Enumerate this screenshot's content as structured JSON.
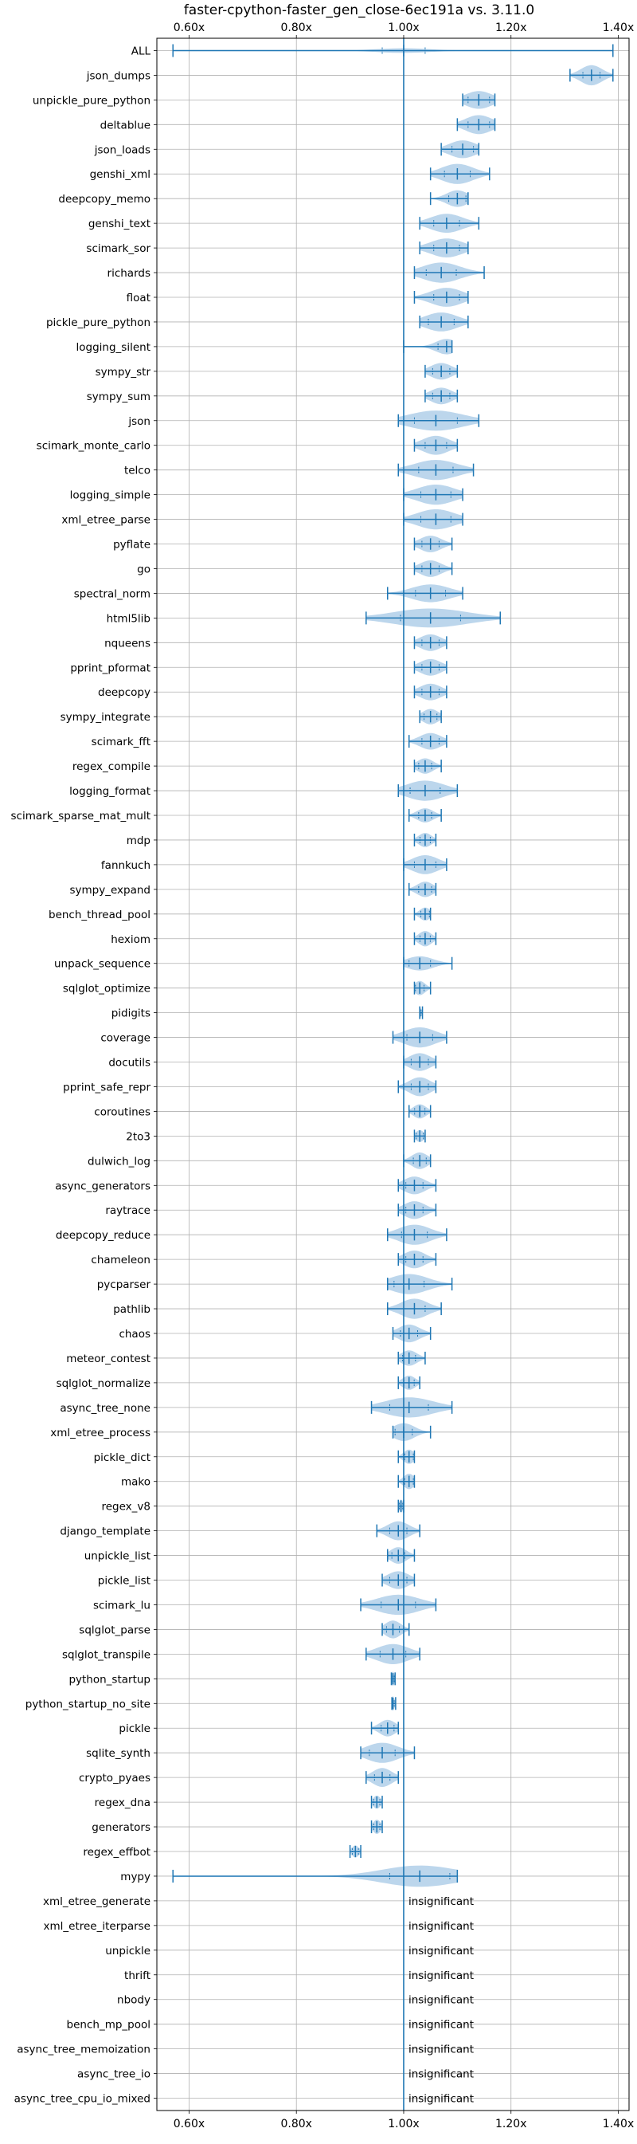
{
  "chart_data": {
    "type": "violin",
    "title": "faster-cpython-faster_gen_close-6ec191a vs. 3.11.0",
    "xlabel": "",
    "ylabel": "",
    "xlim": [
      0.54,
      1.42
    ],
    "xticks": [
      {
        "value": 0.6,
        "label": "0.60x"
      },
      {
        "value": 0.8,
        "label": "0.80x"
      },
      {
        "value": 1.0,
        "label": "1.00x"
      },
      {
        "value": 1.2,
        "label": "1.20x"
      },
      {
        "value": 1.4,
        "label": "1.40x"
      }
    ],
    "reference_line": 1.0,
    "grid": true,
    "color": "#1f77b4",
    "fill_color": "#a6c8e6",
    "annotation_text": "insignificant",
    "benchmarks": [
      {
        "name": "ALL",
        "min": 0.57,
        "max": 1.39,
        "center": 1.0,
        "width": 0.2,
        "spread": 0.05
      },
      {
        "name": "json_dumps",
        "min": 1.31,
        "max": 1.39,
        "center": 1.35,
        "width": 0.85,
        "spread": 0.02
      },
      {
        "name": "unpickle_pure_python",
        "min": 1.11,
        "max": 1.17,
        "center": 1.14,
        "width": 0.75,
        "spread": 0.025
      },
      {
        "name": "deltablue",
        "min": 1.1,
        "max": 1.17,
        "center": 1.14,
        "width": 0.8,
        "spread": 0.025
      },
      {
        "name": "json_loads",
        "min": 1.07,
        "max": 1.14,
        "center": 1.11,
        "width": 0.75,
        "spread": 0.025
      },
      {
        "name": "genshi_xml",
        "min": 1.05,
        "max": 1.16,
        "center": 1.1,
        "width": 0.85,
        "spread": 0.03
      },
      {
        "name": "deepcopy_memo",
        "min": 1.05,
        "max": 1.12,
        "center": 1.1,
        "width": 0.7,
        "spread": 0.02
      },
      {
        "name": "genshi_text",
        "min": 1.03,
        "max": 1.14,
        "center": 1.08,
        "width": 0.8,
        "spread": 0.03
      },
      {
        "name": "scimark_sor",
        "min": 1.03,
        "max": 1.12,
        "center": 1.08,
        "width": 0.8,
        "spread": 0.03
      },
      {
        "name": "richards",
        "min": 1.02,
        "max": 1.15,
        "center": 1.07,
        "width": 0.85,
        "spread": 0.035
      },
      {
        "name": "float",
        "min": 1.02,
        "max": 1.12,
        "center": 1.08,
        "width": 0.8,
        "spread": 0.03
      },
      {
        "name": "pickle_pure_python",
        "min": 1.03,
        "max": 1.12,
        "center": 1.07,
        "width": 0.8,
        "spread": 0.03
      },
      {
        "name": "logging_silent",
        "min": 1.0,
        "max": 1.09,
        "center": 1.08,
        "width": 0.65,
        "spread": 0.02
      },
      {
        "name": "sympy_str",
        "min": 1.04,
        "max": 1.1,
        "center": 1.07,
        "width": 0.7,
        "spread": 0.02
      },
      {
        "name": "sympy_sum",
        "min": 1.04,
        "max": 1.1,
        "center": 1.07,
        "width": 0.7,
        "spread": 0.02
      },
      {
        "name": "json",
        "min": 0.99,
        "max": 1.14,
        "center": 1.06,
        "width": 0.85,
        "spread": 0.05
      },
      {
        "name": "scimark_monte_carlo",
        "min": 1.02,
        "max": 1.1,
        "center": 1.06,
        "width": 0.8,
        "spread": 0.025
      },
      {
        "name": "telco",
        "min": 0.99,
        "max": 1.13,
        "center": 1.06,
        "width": 0.85,
        "spread": 0.04
      },
      {
        "name": "logging_simple",
        "min": 1.0,
        "max": 1.11,
        "center": 1.06,
        "width": 0.85,
        "spread": 0.035
      },
      {
        "name": "xml_etree_parse",
        "min": 1.0,
        "max": 1.11,
        "center": 1.06,
        "width": 0.85,
        "spread": 0.035
      },
      {
        "name": "pyflate",
        "min": 1.02,
        "max": 1.09,
        "center": 1.05,
        "width": 0.7,
        "spread": 0.02
      },
      {
        "name": "go",
        "min": 1.02,
        "max": 1.09,
        "center": 1.05,
        "width": 0.7,
        "spread": 0.02
      },
      {
        "name": "spectral_norm",
        "min": 0.97,
        "max": 1.11,
        "center": 1.05,
        "width": 0.75,
        "spread": 0.035
      },
      {
        "name": "html5lib",
        "min": 0.93,
        "max": 1.18,
        "center": 1.05,
        "width": 0.8,
        "spread": 0.07
      },
      {
        "name": "nqueens",
        "min": 1.02,
        "max": 1.08,
        "center": 1.05,
        "width": 0.7,
        "spread": 0.02
      },
      {
        "name": "pprint_pformat",
        "min": 1.02,
        "max": 1.08,
        "center": 1.05,
        "width": 0.7,
        "spread": 0.02
      },
      {
        "name": "deepcopy",
        "min": 1.02,
        "max": 1.08,
        "center": 1.05,
        "width": 0.7,
        "spread": 0.02
      },
      {
        "name": "sympy_integrate",
        "min": 1.03,
        "max": 1.07,
        "center": 1.05,
        "width": 0.65,
        "spread": 0.015
      },
      {
        "name": "scimark_fft",
        "min": 1.01,
        "max": 1.08,
        "center": 1.05,
        "width": 0.7,
        "spread": 0.02
      },
      {
        "name": "regex_compile",
        "min": 1.02,
        "max": 1.07,
        "center": 1.04,
        "width": 0.65,
        "spread": 0.015
      },
      {
        "name": "logging_format",
        "min": 0.99,
        "max": 1.1,
        "center": 1.04,
        "width": 0.85,
        "spread": 0.035
      },
      {
        "name": "scimark_sparse_mat_mult",
        "min": 1.01,
        "max": 1.07,
        "center": 1.04,
        "width": 0.6,
        "spread": 0.015
      },
      {
        "name": "mdp",
        "min": 1.02,
        "max": 1.06,
        "center": 1.04,
        "width": 0.6,
        "spread": 0.012
      },
      {
        "name": "fannkuch",
        "min": 1.0,
        "max": 1.08,
        "center": 1.04,
        "width": 0.8,
        "spread": 0.025
      },
      {
        "name": "sympy_expand",
        "min": 1.01,
        "max": 1.06,
        "center": 1.04,
        "width": 0.65,
        "spread": 0.015
      },
      {
        "name": "bench_thread_pool",
        "min": 1.02,
        "max": 1.05,
        "center": 1.04,
        "width": 0.55,
        "spread": 0.01
      },
      {
        "name": "hexiom",
        "min": 1.02,
        "max": 1.06,
        "center": 1.04,
        "width": 0.65,
        "spread": 0.012
      },
      {
        "name": "unpack_sequence",
        "min": 1.0,
        "max": 1.09,
        "center": 1.03,
        "width": 0.6,
        "spread": 0.025
      },
      {
        "name": "sqlglot_optimize",
        "min": 1.02,
        "max": 1.05,
        "center": 1.03,
        "width": 0.6,
        "spread": 0.01
      },
      {
        "name": "pidigits",
        "min": 1.03,
        "max": 1.035,
        "center": 1.03,
        "width": 0.45,
        "spread": 0.003
      },
      {
        "name": "coverage",
        "min": 0.98,
        "max": 1.08,
        "center": 1.03,
        "width": 0.85,
        "spread": 0.03
      },
      {
        "name": "docutils",
        "min": 1.0,
        "max": 1.06,
        "center": 1.03,
        "width": 0.75,
        "spread": 0.02
      },
      {
        "name": "pprint_safe_repr",
        "min": 0.99,
        "max": 1.06,
        "center": 1.03,
        "width": 0.8,
        "spread": 0.02
      },
      {
        "name": "coroutines",
        "min": 1.01,
        "max": 1.05,
        "center": 1.03,
        "width": 0.6,
        "spread": 0.012
      },
      {
        "name": "2to3",
        "min": 1.02,
        "max": 1.04,
        "center": 1.03,
        "width": 0.5,
        "spread": 0.008
      },
      {
        "name": "dulwich_log",
        "min": 1.0,
        "max": 1.05,
        "center": 1.03,
        "width": 0.7,
        "spread": 0.015
      },
      {
        "name": "async_generators",
        "min": 0.99,
        "max": 1.06,
        "center": 1.02,
        "width": 0.75,
        "spread": 0.02
      },
      {
        "name": "raytrace",
        "min": 0.99,
        "max": 1.06,
        "center": 1.02,
        "width": 0.75,
        "spread": 0.02
      },
      {
        "name": "deepcopy_reduce",
        "min": 0.97,
        "max": 1.08,
        "center": 1.02,
        "width": 0.85,
        "spread": 0.03
      },
      {
        "name": "chameleon",
        "min": 0.99,
        "max": 1.06,
        "center": 1.02,
        "width": 0.75,
        "spread": 0.02
      },
      {
        "name": "pycparser",
        "min": 0.97,
        "max": 1.09,
        "center": 1.01,
        "width": 0.85,
        "spread": 0.035
      },
      {
        "name": "pathlib",
        "min": 0.97,
        "max": 1.07,
        "center": 1.02,
        "width": 0.85,
        "spread": 0.025
      },
      {
        "name": "chaos",
        "min": 0.98,
        "max": 1.05,
        "center": 1.01,
        "width": 0.75,
        "spread": 0.02
      },
      {
        "name": "meteor_contest",
        "min": 0.99,
        "max": 1.04,
        "center": 1.01,
        "width": 0.65,
        "spread": 0.015
      },
      {
        "name": "sqlglot_normalize",
        "min": 0.99,
        "max": 1.03,
        "center": 1.01,
        "width": 0.6,
        "spread": 0.012
      },
      {
        "name": "async_tree_none",
        "min": 0.94,
        "max": 1.09,
        "center": 1.01,
        "width": 0.85,
        "spread": 0.045
      },
      {
        "name": "xml_etree_process",
        "min": 0.98,
        "max": 1.05,
        "center": 1.0,
        "width": 0.75,
        "spread": 0.02
      },
      {
        "name": "pickle_dict",
        "min": 0.99,
        "max": 1.02,
        "center": 1.01,
        "width": 0.6,
        "spread": 0.01
      },
      {
        "name": "mako",
        "min": 0.99,
        "max": 1.02,
        "center": 1.01,
        "width": 0.65,
        "spread": 0.01
      },
      {
        "name": "regex_v8",
        "min": 0.99,
        "max": 1.0,
        "center": 0.995,
        "width": 0.55,
        "spread": 0.004
      },
      {
        "name": "django_template",
        "min": 0.95,
        "max": 1.03,
        "center": 0.99,
        "width": 0.8,
        "spread": 0.02
      },
      {
        "name": "unpickle_list",
        "min": 0.97,
        "max": 1.02,
        "center": 0.99,
        "width": 0.7,
        "spread": 0.015
      },
      {
        "name": "pickle_list",
        "min": 0.96,
        "max": 1.02,
        "center": 0.99,
        "width": 0.75,
        "spread": 0.02
      },
      {
        "name": "scimark_lu",
        "min": 0.92,
        "max": 1.06,
        "center": 0.99,
        "width": 0.85,
        "spread": 0.04
      },
      {
        "name": "sqlglot_parse",
        "min": 0.96,
        "max": 1.01,
        "center": 0.98,
        "width": 0.75,
        "spread": 0.015
      },
      {
        "name": "sqlglot_transpile",
        "min": 0.93,
        "max": 1.03,
        "center": 0.98,
        "width": 0.85,
        "spread": 0.03
      },
      {
        "name": "python_startup",
        "min": 0.977,
        "max": 0.984,
        "center": 0.98,
        "width": 0.6,
        "spread": 0.003
      },
      {
        "name": "python_startup_no_site",
        "min": 0.978,
        "max": 0.985,
        "center": 0.98,
        "width": 0.6,
        "spread": 0.003
      },
      {
        "name": "pickle",
        "min": 0.94,
        "max": 0.99,
        "center": 0.97,
        "width": 0.7,
        "spread": 0.015
      },
      {
        "name": "sqlite_synth",
        "min": 0.92,
        "max": 1.02,
        "center": 0.96,
        "width": 0.85,
        "spread": 0.03
      },
      {
        "name": "crypto_pyaes",
        "min": 0.93,
        "max": 0.99,
        "center": 0.96,
        "width": 0.8,
        "spread": 0.018
      },
      {
        "name": "regex_dna",
        "min": 0.94,
        "max": 0.96,
        "center": 0.95,
        "width": 0.55,
        "spread": 0.007
      },
      {
        "name": "generators",
        "min": 0.94,
        "max": 0.96,
        "center": 0.95,
        "width": 0.6,
        "spread": 0.007
      },
      {
        "name": "regex_effbot",
        "min": 0.9,
        "max": 0.92,
        "center": 0.91,
        "width": 0.5,
        "spread": 0.007
      },
      {
        "name": "mypy",
        "min": 0.57,
        "max": 1.1,
        "center": 1.03,
        "width": 0.9,
        "spread": 0.07
      },
      {
        "name": "xml_etree_generate",
        "insignificant": true
      },
      {
        "name": "xml_etree_iterparse",
        "insignificant": true
      },
      {
        "name": "unpickle",
        "insignificant": true
      },
      {
        "name": "thrift",
        "insignificant": true
      },
      {
        "name": "nbody",
        "insignificant": true
      },
      {
        "name": "bench_mp_pool",
        "insignificant": true
      },
      {
        "name": "async_tree_memoization",
        "insignificant": true
      },
      {
        "name": "async_tree_io",
        "insignificant": true
      },
      {
        "name": "async_tree_cpu_io_mixed",
        "insignificant": true
      }
    ]
  }
}
